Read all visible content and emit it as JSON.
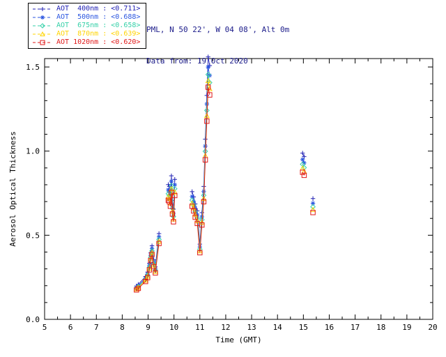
{
  "header": {
    "site": "PML, N 50 22', W 04 08', Alt 0m",
    "date_line": "Data from: 19 Oct 2020",
    "color": "#1c1c8a"
  },
  "legend": {
    "entries": [
      {
        "label": "AOT  400nm : <0.711>",
        "color": "#2020b4",
        "marker": "plus"
      },
      {
        "label": "AOT  500nm : <0.688>",
        "color": "#2a55e0",
        "marker": "asterisk"
      },
      {
        "label": "AOT  675nm : <0.658>",
        "color": "#35d0a8",
        "marker": "diamond"
      },
      {
        "label": "AOT  870nm : <0.639>",
        "color": "#ffd400",
        "marker": "triangle"
      },
      {
        "label": "AOT 1020nm : <0.620>",
        "color": "#e01818",
        "marker": "square"
      }
    ]
  },
  "chart_data": {
    "type": "line",
    "title": "",
    "xlabel": "Time (GMT)",
    "ylabel": "Aerosol Optical Thickness",
    "xlim": [
      5,
      20
    ],
    "ylim": [
      0,
      1.55
    ],
    "xticks": [
      5,
      6,
      7,
      8,
      9,
      10,
      11,
      12,
      13,
      14,
      15,
      16,
      17,
      18,
      19,
      20
    ],
    "yticks": [
      0.0,
      0.5,
      1.0,
      1.5
    ],
    "ytick_labels": [
      "0.0",
      "0.5",
      "1.0",
      "1.5"
    ],
    "grid": false,
    "legend_position": "top-left",
    "frame_color": "#000000",
    "x": [
      8.55,
      8.62,
      8.9,
      8.98,
      9.05,
      9.1,
      9.15,
      9.22,
      9.28,
      9.42,
      9.78,
      9.82,
      9.86,
      9.9,
      9.94,
      9.98,
      10.03,
      10.7,
      10.76,
      10.82,
      10.9,
      11.0,
      11.08,
      11.15,
      11.21,
      11.27,
      11.32,
      11.38,
      14.97,
      15.03,
      15.37
    ],
    "segments": [
      [
        0,
        9
      ],
      [
        10,
        16
      ],
      [
        17,
        27
      ],
      [
        28,
        29
      ],
      [
        30,
        30
      ]
    ],
    "series": [
      {
        "name": "AOT 400nm",
        "mean": "<0.711>",
        "color": "#2020b4",
        "marker": "plus",
        "values": [
          0.198,
          0.208,
          0.255,
          0.281,
          0.333,
          0.395,
          0.437,
          0.354,
          0.312,
          0.51,
          0.801,
          0.79,
          0.759,
          0.853,
          0.707,
          0.655,
          0.832,
          0.759,
          0.728,
          0.686,
          0.645,
          0.447,
          0.634,
          0.79,
          1.071,
          1.331,
          1.56,
          1.508,
          0.988,
          0.967,
          0.718
        ]
      },
      {
        "name": "AOT 500nm",
        "mean": "<0.688>",
        "color": "#2a55e0",
        "marker": "asterisk",
        "values": [
          0.19,
          0.2,
          0.245,
          0.27,
          0.32,
          0.38,
          0.42,
          0.34,
          0.3,
          0.49,
          0.77,
          0.76,
          0.73,
          0.82,
          0.68,
          0.63,
          0.8,
          0.73,
          0.7,
          0.66,
          0.62,
          0.43,
          0.61,
          0.76,
          1.03,
          1.28,
          1.5,
          1.45,
          0.95,
          0.93,
          0.69
        ]
      },
      {
        "name": "AOT 675nm",
        "mean": "<0.658>",
        "color": "#35d0a8",
        "marker": "diamond",
        "values": [
          0.184,
          0.194,
          0.238,
          0.262,
          0.31,
          0.369,
          0.407,
          0.33,
          0.291,
          0.475,
          0.747,
          0.737,
          0.708,
          0.795,
          0.66,
          0.611,
          0.776,
          0.708,
          0.679,
          0.64,
          0.601,
          0.417,
          0.592,
          0.737,
          0.999,
          1.242,
          1.455,
          1.407,
          0.922,
          0.902,
          0.669
        ]
      },
      {
        "name": "AOT 870nm",
        "mean": "<0.639>",
        "color": "#ffd400",
        "marker": "triangle",
        "values": [
          0.18,
          0.189,
          0.232,
          0.255,
          0.302,
          0.359,
          0.397,
          0.321,
          0.284,
          0.463,
          0.728,
          0.718,
          0.69,
          0.775,
          0.643,
          0.595,
          0.756,
          0.69,
          0.662,
          0.624,
          0.586,
          0.406,
          0.576,
          0.718,
          0.973,
          1.21,
          1.418,
          1.37,
          0.898,
          0.879,
          0.652
        ]
      },
      {
        "name": "AOT 1020nm",
        "mean": "<0.620>",
        "color": "#e01818",
        "marker": "square",
        "values": [
          0.175,
          0.184,
          0.225,
          0.248,
          0.294,
          0.35,
          0.386,
          0.313,
          0.276,
          0.451,
          0.708,
          0.699,
          0.672,
          0.754,
          0.626,
          0.58,
          0.736,
          0.672,
          0.644,
          0.607,
          0.57,
          0.396,
          0.561,
          0.699,
          0.948,
          1.178,
          1.38,
          1.334,
          0.874,
          0.856,
          0.635
        ]
      }
    ]
  }
}
